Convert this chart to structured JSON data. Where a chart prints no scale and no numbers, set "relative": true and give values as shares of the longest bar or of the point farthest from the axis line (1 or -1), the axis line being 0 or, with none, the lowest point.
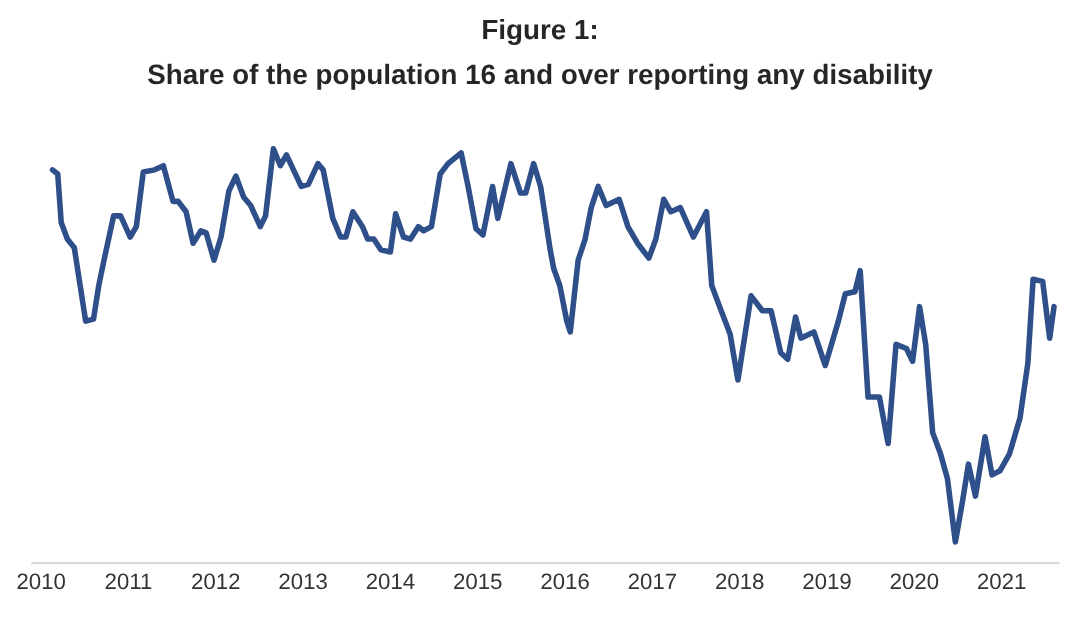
{
  "chart_data": {
    "type": "line",
    "title": "Figure 1:",
    "subtitle": "Share of the population 16 and over reporting any disability",
    "relative": true,
    "xlim": [
      2009.9,
      2021.65
    ],
    "xticks": [
      2010,
      2011,
      2012,
      2013,
      2014,
      2015,
      2016,
      2017,
      2018,
      2019,
      2020,
      2021
    ],
    "x": [
      2010.13,
      2010.19,
      2010.23,
      2010.3,
      2010.38,
      2010.51,
      2010.6,
      2010.66,
      2010.72,
      2010.83,
      2010.91,
      2011.02,
      2011.09,
      2011.17,
      2011.3,
      2011.4,
      2011.51,
      2011.57,
      2011.66,
      2011.74,
      2011.83,
      2011.89,
      2011.98,
      2012.06,
      2012.15,
      2012.23,
      2012.32,
      2012.4,
      2012.51,
      2012.57,
      2012.66,
      2012.74,
      2012.81,
      2012.89,
      2012.98,
      2013.06,
      2013.17,
      2013.23,
      2013.34,
      2013.43,
      2013.49,
      2013.57,
      2013.68,
      2013.74,
      2013.81,
      2013.89,
      2014.0,
      2014.06,
      2014.15,
      2014.23,
      2014.32,
      2014.38,
      2014.47,
      2014.57,
      2014.66,
      2014.81,
      2014.89,
      2014.98,
      2015.06,
      2015.17,
      2015.23,
      2015.38,
      2015.49,
      2015.55,
      2015.64,
      2015.72,
      2015.83,
      2015.87,
      2015.94,
      2016.02,
      2016.06,
      2016.15,
      2016.23,
      2016.3,
      2016.38,
      2016.47,
      2016.62,
      2016.72,
      2016.83,
      2016.96,
      2017.04,
      2017.13,
      2017.21,
      2017.32,
      2017.47,
      2017.62,
      2017.68,
      2017.77,
      2017.89,
      2017.98,
      2018.13,
      2018.26,
      2018.36,
      2018.47,
      2018.55,
      2018.64,
      2018.7,
      2018.85,
      2018.98,
      2019.13,
      2019.21,
      2019.32,
      2019.38,
      2019.47,
      2019.6,
      2019.7,
      2019.79,
      2019.91,
      2019.98,
      2020.06,
      2020.13,
      2020.21,
      2020.3,
      2020.38,
      2020.47,
      2020.55,
      2020.62,
      2020.7,
      2020.81,
      2020.89,
      2020.98,
      2021.09,
      2021.21,
      2021.3,
      2021.36,
      2021.47,
      2021.55,
      2021.6
    ],
    "series": [
      {
        "color": "#2e4f8a",
        "values": [
          0.949,
          0.939,
          0.822,
          0.782,
          0.761,
          0.584,
          0.589,
          0.67,
          0.731,
          0.838,
          0.838,
          0.787,
          0.812,
          0.944,
          0.949,
          0.959,
          0.873,
          0.873,
          0.848,
          0.772,
          0.802,
          0.797,
          0.731,
          0.787,
          0.898,
          0.934,
          0.883,
          0.863,
          0.812,
          0.838,
          1.0,
          0.959,
          0.985,
          0.949,
          0.909,
          0.914,
          0.964,
          0.949,
          0.832,
          0.787,
          0.787,
          0.848,
          0.812,
          0.782,
          0.782,
          0.756,
          0.751,
          0.843,
          0.787,
          0.782,
          0.812,
          0.802,
          0.812,
          0.939,
          0.964,
          0.99,
          0.909,
          0.807,
          0.792,
          0.909,
          0.832,
          0.964,
          0.893,
          0.893,
          0.964,
          0.909,
          0.756,
          0.711,
          0.67,
          0.584,
          0.558,
          0.731,
          0.782,
          0.858,
          0.909,
          0.863,
          0.878,
          0.812,
          0.772,
          0.736,
          0.782,
          0.878,
          0.848,
          0.858,
          0.787,
          0.848,
          0.67,
          0.619,
          0.553,
          0.442,
          0.645,
          0.609,
          0.609,
          0.508,
          0.492,
          0.594,
          0.543,
          0.558,
          0.477,
          0.584,
          0.65,
          0.655,
          0.706,
          0.401,
          0.401,
          0.289,
          0.528,
          0.518,
          0.487,
          0.619,
          0.528,
          0.315,
          0.264,
          0.203,
          0.051,
          0.147,
          0.239,
          0.162,
          0.305,
          0.213,
          0.223,
          0.264,
          0.35,
          0.482,
          0.685,
          0.68,
          0.543,
          0.619
        ]
      }
    ]
  }
}
